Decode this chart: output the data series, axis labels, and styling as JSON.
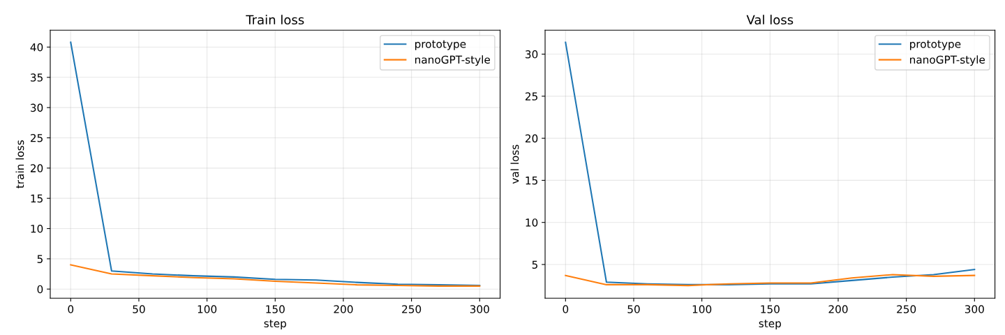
{
  "chart_data": [
    {
      "type": "line",
      "title": "Train loss",
      "xlabel": "step",
      "ylabel": "train loss",
      "x": [
        0,
        30,
        60,
        90,
        120,
        150,
        180,
        210,
        240,
        270,
        300
      ],
      "series": [
        {
          "name": "prototype",
          "color": "#1f77b4",
          "values": [
            40.8,
            3.0,
            2.5,
            2.2,
            2.0,
            1.6,
            1.5,
            1.1,
            0.8,
            0.7,
            0.6
          ]
        },
        {
          "name": "nanoGPT-style",
          "color": "#ff7f0e",
          "values": [
            4.0,
            2.5,
            2.2,
            1.9,
            1.7,
            1.3,
            1.0,
            0.7,
            0.6,
            0.5,
            0.5
          ]
        }
      ],
      "xlim": [
        -15,
        315
      ],
      "xticks": [
        0,
        50,
        100,
        150,
        200,
        250,
        300
      ],
      "ylim": [
        -1.5,
        42.8
      ],
      "yticks": [
        0,
        5,
        10,
        15,
        20,
        25,
        30,
        35,
        40
      ],
      "grid": true,
      "legend": "top right"
    },
    {
      "type": "line",
      "title": "Val loss",
      "xlabel": "step",
      "ylabel": "val loss",
      "x": [
        0,
        30,
        60,
        90,
        120,
        150,
        180,
        210,
        240,
        270,
        300
      ],
      "series": [
        {
          "name": "prototype",
          "color": "#1f77b4",
          "values": [
            31.4,
            2.9,
            2.7,
            2.6,
            2.6,
            2.7,
            2.7,
            3.1,
            3.5,
            3.8,
            4.4
          ]
        },
        {
          "name": "nanoGPT-style",
          "color": "#ff7f0e",
          "values": [
            3.7,
            2.6,
            2.6,
            2.5,
            2.7,
            2.8,
            2.8,
            3.4,
            3.8,
            3.6,
            3.7
          ]
        }
      ],
      "xlim": [
        -15,
        315
      ],
      "xticks": [
        0,
        50,
        100,
        150,
        200,
        250,
        300
      ],
      "ylim": [
        1.0,
        32.85
      ],
      "yticks": [
        5,
        10,
        15,
        20,
        25,
        30
      ],
      "grid": true,
      "legend": "top right"
    }
  ]
}
